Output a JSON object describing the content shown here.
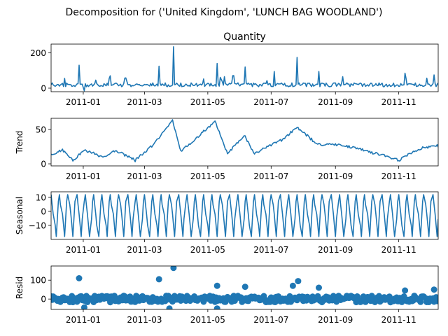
{
  "figure": {
    "suptitle": "Decomposition for ('United Kingdom', 'LUNCH BAG WOODLAND')",
    "line_color": "#1f77b4",
    "x_ticks": [
      "2011-01",
      "2011-03",
      "2011-05",
      "2011-07",
      "2011-09",
      "2011-11"
    ]
  },
  "chart_data": [
    {
      "type": "line",
      "title": "Quantity",
      "ylabel": "",
      "ylim": [
        -20,
        250
      ],
      "yticks": [
        "0",
        "200"
      ],
      "key_points": [
        {
          "date": "2010-12-01",
          "value": 20
        },
        {
          "date": "2010-12-28",
          "value": 130
        },
        {
          "date": "2011-01-02",
          "value": -15
        },
        {
          "date": "2011-01-27",
          "value": 70
        },
        {
          "date": "2011-03-15",
          "value": 125
        },
        {
          "date": "2011-03-29",
          "value": 235
        },
        {
          "date": "2011-05-10",
          "value": 140
        },
        {
          "date": "2011-06-06",
          "value": 120
        },
        {
          "date": "2011-07-04",
          "value": 95
        },
        {
          "date": "2011-07-26",
          "value": 175
        },
        {
          "date": "2011-08-16",
          "value": 95
        },
        {
          "date": "2011-11-07",
          "value": 85
        },
        {
          "date": "2011-12-05",
          "value": 75
        },
        {
          "date": "2011-12-09",
          "value": 30
        }
      ]
    },
    {
      "type": "line",
      "title": "",
      "ylabel": "Trend",
      "ylim": [
        -3,
        66
      ],
      "yticks": [
        "0",
        "50"
      ],
      "key_points": [
        {
          "date": "2010-12-01",
          "value": 12
        },
        {
          "date": "2010-12-12",
          "value": 20
        },
        {
          "date": "2010-12-22",
          "value": 5
        },
        {
          "date": "2011-01-02",
          "value": 20
        },
        {
          "date": "2011-01-20",
          "value": 10
        },
        {
          "date": "2011-02-01",
          "value": 20
        },
        {
          "date": "2011-02-20",
          "value": 5
        },
        {
          "date": "2011-03-10",
          "value": 28
        },
        {
          "date": "2011-03-28",
          "value": 63
        },
        {
          "date": "2011-04-05",
          "value": 18
        },
        {
          "date": "2011-05-08",
          "value": 61
        },
        {
          "date": "2011-05-20",
          "value": 15
        },
        {
          "date": "2011-06-05",
          "value": 42
        },
        {
          "date": "2011-06-15",
          "value": 15
        },
        {
          "date": "2011-07-12",
          "value": 35
        },
        {
          "date": "2011-07-26",
          "value": 53
        },
        {
          "date": "2011-08-15",
          "value": 28
        },
        {
          "date": "2011-09-06",
          "value": 28
        },
        {
          "date": "2011-10-15",
          "value": 13
        },
        {
          "date": "2011-11-01",
          "value": 5
        },
        {
          "date": "2011-11-20",
          "value": 22
        },
        {
          "date": "2011-12-09",
          "value": 26
        }
      ]
    },
    {
      "type": "line",
      "title": "",
      "ylabel": "Seasonal",
      "ylim": [
        -20,
        14
      ],
      "yticks": [
        "10",
        "0",
        "−10"
      ],
      "seasonal": {
        "period_days": 7,
        "max": 12,
        "min": -18
      }
    },
    {
      "type": "scatter",
      "title": "",
      "ylabel": "Resid",
      "ylim": [
        -55,
        175
      ],
      "yticks": [
        "0",
        "100"
      ],
      "key_points": [
        {
          "date": "2010-12-28",
          "value": 110
        },
        {
          "date": "2011-01-02",
          "value": -45
        },
        {
          "date": "2011-03-15",
          "value": 105
        },
        {
          "date": "2011-03-29",
          "value": 165
        },
        {
          "date": "2011-03-25",
          "value": -50
        },
        {
          "date": "2011-05-10",
          "value": 70
        },
        {
          "date": "2011-05-10",
          "value": -50
        },
        {
          "date": "2011-06-06",
          "value": 65
        },
        {
          "date": "2011-07-22",
          "value": 70
        },
        {
          "date": "2011-07-27",
          "value": 95
        },
        {
          "date": "2011-08-16",
          "value": 60
        },
        {
          "date": "2011-11-07",
          "value": 45
        },
        {
          "date": "2011-12-05",
          "value": 50
        }
      ]
    }
  ]
}
